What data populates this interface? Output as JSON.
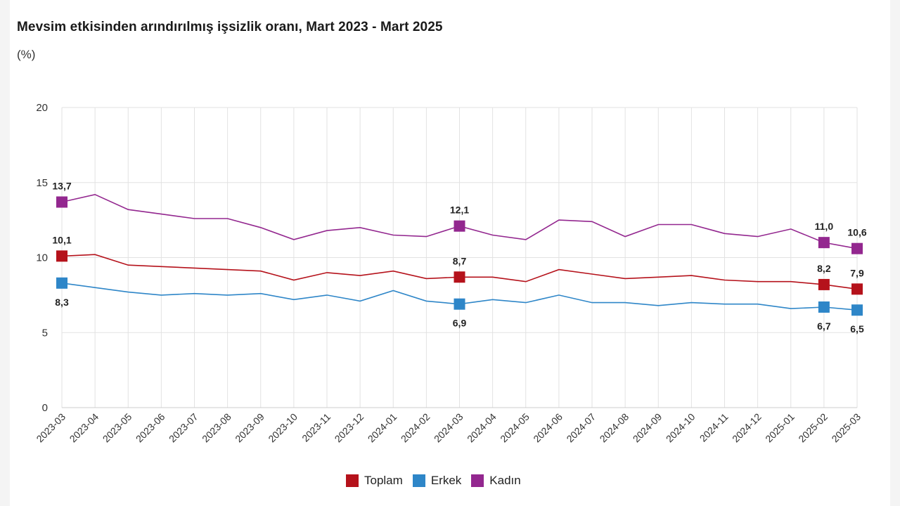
{
  "colors": {
    "toplam": "#b5121b",
    "erkek": "#2e86c8",
    "kadin": "#93278f",
    "grid": "#e2e2e2"
  },
  "chart_data": {
    "type": "line",
    "title": "Mevsim etkisinden arındırılmış işsizlik oranı, Mart 2023 - Mart 2025",
    "ylabel": "(%)",
    "xlabel": "",
    "ylim": [
      0,
      20
    ],
    "yticks": [
      "0",
      "5",
      "10",
      "15",
      "20"
    ],
    "grid": true,
    "legend_position": "bottom-center",
    "categories": [
      "2023-03",
      "2023-04",
      "2023-05",
      "2023-06",
      "2023-07",
      "2023-08",
      "2023-09",
      "2023-10",
      "2023-11",
      "2023-12",
      "2024-01",
      "2024-02",
      "2024-03",
      "2024-04",
      "2024-05",
      "2024-06",
      "2024-07",
      "2024-08",
      "2024-09",
      "2024-10",
      "2024-11",
      "2024-12",
      "2025-01",
      "2025-02",
      "2025-03"
    ],
    "series": [
      {
        "key": "toplam",
        "name": "Toplam",
        "color": "#b5121b",
        "values": [
          10.1,
          10.2,
          9.5,
          9.4,
          9.3,
          9.2,
          9.1,
          8.5,
          9.0,
          8.8,
          9.1,
          8.6,
          8.7,
          8.7,
          8.4,
          9.2,
          8.9,
          8.6,
          8.7,
          8.8,
          8.5,
          8.4,
          8.4,
          8.2,
          7.9
        ],
        "markers": [
          {
            "index": 0,
            "label": "10,1",
            "pos": "above"
          },
          {
            "index": 12,
            "label": "8,7",
            "pos": "above"
          },
          {
            "index": 23,
            "label": "8,2",
            "pos": "above"
          },
          {
            "index": 24,
            "label": "7,9",
            "pos": "above"
          }
        ]
      },
      {
        "key": "erkek",
        "name": "Erkek",
        "color": "#2e86c8",
        "values": [
          8.3,
          8.0,
          7.7,
          7.5,
          7.6,
          7.5,
          7.6,
          7.2,
          7.5,
          7.1,
          7.8,
          7.1,
          6.9,
          7.2,
          7.0,
          7.5,
          7.0,
          7.0,
          6.8,
          7.0,
          6.9,
          6.9,
          6.6,
          6.7,
          6.5
        ],
        "markers": [
          {
            "index": 0,
            "label": "8,3",
            "pos": "below"
          },
          {
            "index": 12,
            "label": "6,9",
            "pos": "below"
          },
          {
            "index": 23,
            "label": "6,7",
            "pos": "below"
          },
          {
            "index": 24,
            "label": "6,5",
            "pos": "below"
          }
        ]
      },
      {
        "key": "kadin",
        "name": "Kadın",
        "color": "#93278f",
        "values": [
          13.7,
          14.2,
          13.2,
          12.9,
          12.6,
          12.6,
          12.0,
          11.2,
          11.8,
          12.0,
          11.5,
          11.4,
          12.1,
          11.5,
          11.2,
          12.5,
          12.4,
          11.4,
          12.2,
          12.2,
          11.6,
          11.4,
          11.9,
          11.0,
          10.6
        ],
        "markers": [
          {
            "index": 0,
            "label": "13,7",
            "pos": "above"
          },
          {
            "index": 12,
            "label": "12,1",
            "pos": "above"
          },
          {
            "index": 23,
            "label": "11,0",
            "pos": "above"
          },
          {
            "index": 24,
            "label": "10,6",
            "pos": "above"
          }
        ]
      }
    ]
  }
}
